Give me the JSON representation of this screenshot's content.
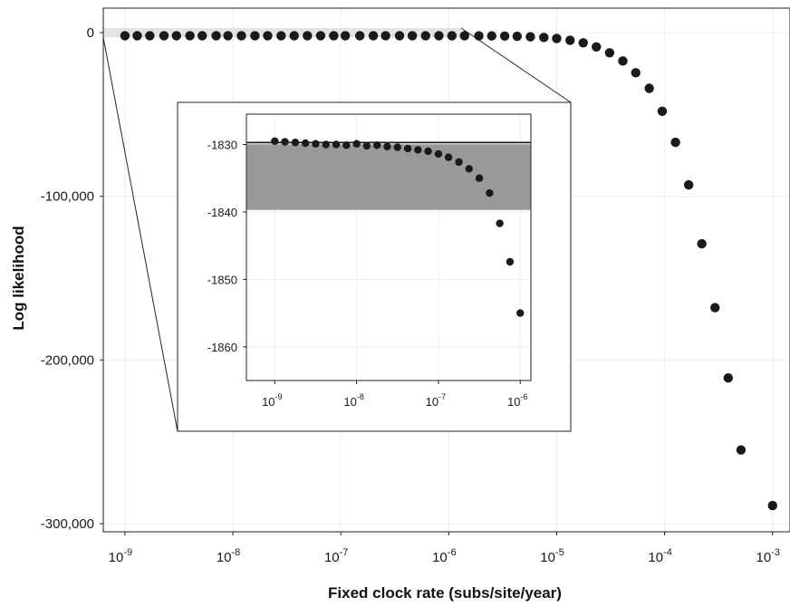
{
  "chart_data": [
    {
      "type": "scatter",
      "xlabel": "Fixed clock rate (subs/site/year)",
      "ylabel": "Log likelihood",
      "x_scale": "log10",
      "xlim": [
        6.3e-10,
        0.00145
      ],
      "ylim": [
        -305000,
        15000
      ],
      "x_ticks": [
        {
          "value": 1e-09,
          "base": "10",
          "exp": "-9"
        },
        {
          "value": 1e-08,
          "base": "10",
          "exp": "-8"
        },
        {
          "value": 1e-07,
          "base": "10",
          "exp": "-7"
        },
        {
          "value": 1e-06,
          "base": "10",
          "exp": "-6"
        },
        {
          "value": 1e-05,
          "base": "10",
          "exp": "-5"
        },
        {
          "value": 0.0001,
          "base": "10",
          "exp": "-4"
        },
        {
          "value": 0.001,
          "base": "10",
          "exp": "-3"
        }
      ],
      "y_ticks": [
        {
          "value": 0,
          "label": "0"
        },
        {
          "value": -100000,
          "label": "-100,000"
        },
        {
          "value": -200000,
          "label": "-200,000"
        },
        {
          "value": -300000,
          "label": "-300,000"
        }
      ],
      "grid": true,
      "highlight_region": {
        "x_range": [
          6.3e-10,
          1.3e-06
        ],
        "y_range": [
          -2900,
          2900
        ],
        "color": "#e3e3e3"
      },
      "point_color": "#1a1a1a",
      "points": [
        {
          "x": 1e-09,
          "y": -1829
        },
        {
          "x": 1.3e-09,
          "y": -1829
        },
        {
          "x": 1.7e-09,
          "y": -1829
        },
        {
          "x": 2.3e-09,
          "y": -1830
        },
        {
          "x": 3e-09,
          "y": -1830
        },
        {
          "x": 4e-09,
          "y": -1830
        },
        {
          "x": 5.2e-09,
          "y": -1830
        },
        {
          "x": 7e-09,
          "y": -1830
        },
        {
          "x": 9e-09,
          "y": -1830
        },
        {
          "x": 1.2e-08,
          "y": -1830
        },
        {
          "x": 1.6e-08,
          "y": -1830
        },
        {
          "x": 2.1e-08,
          "y": -1830
        },
        {
          "x": 2.8e-08,
          "y": -1830
        },
        {
          "x": 3.7e-08,
          "y": -1830
        },
        {
          "x": 4.9e-08,
          "y": -1830
        },
        {
          "x": 6.5e-08,
          "y": -1831
        },
        {
          "x": 8.6e-08,
          "y": -1831
        },
        {
          "x": 1.1e-07,
          "y": -1831
        },
        {
          "x": 1.5e-07,
          "y": -1832
        },
        {
          "x": 2e-07,
          "y": -1833
        },
        {
          "x": 2.6e-07,
          "y": -1834
        },
        {
          "x": 3.5e-07,
          "y": -1836
        },
        {
          "x": 4.6e-07,
          "y": -1838
        },
        {
          "x": 6.1e-07,
          "y": -1842
        },
        {
          "x": 8.1e-07,
          "y": -1848
        },
        {
          "x": 1.07e-06,
          "y": -1855
        },
        {
          "x": 1.4e-06,
          "y": -1870
        },
        {
          "x": 1.9e-06,
          "y": -1900
        },
        {
          "x": 2.5e-06,
          "y": -1950
        },
        {
          "x": 3.3e-06,
          "y": -2050
        },
        {
          "x": 4.3e-06,
          "y": -2200
        },
        {
          "x": 5.7e-06,
          "y": -2500
        },
        {
          "x": 7.6e-06,
          "y": -2900
        },
        {
          "x": 1e-05,
          "y": -3500
        },
        {
          "x": 1.33e-05,
          "y": -4600
        },
        {
          "x": 1.76e-05,
          "y": -6200
        },
        {
          "x": 2.33e-05,
          "y": -8700
        },
        {
          "x": 3.09e-05,
          "y": -12300
        },
        {
          "x": 4.1e-05,
          "y": -17300
        },
        {
          "x": 5.4e-05,
          "y": -24500
        },
        {
          "x": 7.2e-05,
          "y": -34000
        },
        {
          "x": 9.5e-05,
          "y": -48000
        },
        {
          "x": 0.000126,
          "y": -67000
        },
        {
          "x": 0.000167,
          "y": -93000
        },
        {
          "x": 0.000221,
          "y": -129000
        },
        {
          "x": 0.000293,
          "y": -168000
        },
        {
          "x": 0.000388,
          "y": -211000
        },
        {
          "x": 0.00051,
          "y": -255000
        },
        {
          "x": 0.001,
          "y": -289000
        }
      ]
    },
    {
      "type": "scatter",
      "role": "inset",
      "x_scale": "log10",
      "xlim": [
        4.5e-10,
        1.35e-06
      ],
      "ylim": [
        -1865,
        -1825.5
      ],
      "x_ticks": [
        {
          "value": 1e-09,
          "base": "10",
          "exp": "-9"
        },
        {
          "value": 1e-08,
          "base": "10",
          "exp": "-8"
        },
        {
          "value": 1e-07,
          "base": "10",
          "exp": "-7"
        },
        {
          "value": 1e-06,
          "base": "10",
          "exp": "-6"
        }
      ],
      "y_ticks": [
        {
          "value": -1830,
          "label": "-1830"
        },
        {
          "value": -1840,
          "label": "-1840"
        },
        {
          "value": -1850,
          "label": "-1850"
        },
        {
          "value": -1860,
          "label": "-1860"
        }
      ],
      "grid": true,
      "max_line": {
        "y": -1829.7,
        "color": "#1a1a1a"
      },
      "band": {
        "y_range": [
          -1839.7,
          -1829.9
        ],
        "color": "#999999"
      },
      "point_color": "#1a1a1a",
      "points": [
        {
          "x": 1e-09,
          "y": -1829.5
        },
        {
          "x": 1.33e-09,
          "y": -1829.6
        },
        {
          "x": 1.78e-09,
          "y": -1829.7
        },
        {
          "x": 2.37e-09,
          "y": -1829.8
        },
        {
          "x": 3.16e-09,
          "y": -1829.9
        },
        {
          "x": 4.22e-09,
          "y": -1830.0
        },
        {
          "x": 5.62e-09,
          "y": -1830.0
        },
        {
          "x": 7.5e-09,
          "y": -1830.1
        },
        {
          "x": 1e-08,
          "y": -1829.9
        },
        {
          "x": 1.33e-08,
          "y": -1830.2
        },
        {
          "x": 1.78e-08,
          "y": -1830.1
        },
        {
          "x": 2.37e-08,
          "y": -1830.3
        },
        {
          "x": 3.16e-08,
          "y": -1830.4
        },
        {
          "x": 4.22e-08,
          "y": -1830.6
        },
        {
          "x": 5.62e-08,
          "y": -1830.8
        },
        {
          "x": 7.5e-08,
          "y": -1831.0
        },
        {
          "x": 1e-07,
          "y": -1831.4
        },
        {
          "x": 1.33e-07,
          "y": -1831.9
        },
        {
          "x": 1.78e-07,
          "y": -1832.6
        },
        {
          "x": 2.37e-07,
          "y": -1833.6
        },
        {
          "x": 3.16e-07,
          "y": -1835.0
        },
        {
          "x": 4.22e-07,
          "y": -1837.2
        },
        {
          "x": 5.62e-07,
          "y": -1841.7
        },
        {
          "x": 7.5e-07,
          "y": -1847.4
        },
        {
          "x": 1e-06,
          "y": -1855.0
        }
      ]
    }
  ]
}
